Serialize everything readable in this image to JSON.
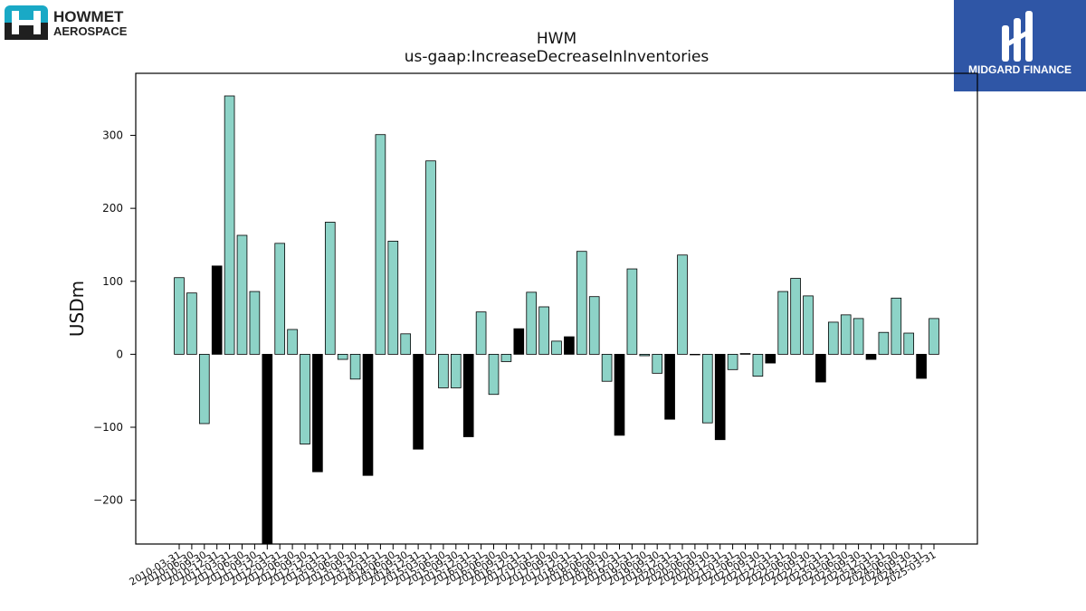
{
  "header": {
    "title": "HWM",
    "subtitle": "us-gaap:IncreaseDecreaseInInventories",
    "company_logo_text_1": "HOWMET",
    "company_logo_text_2": "AEROSPACE",
    "brand_logo_text": "MIDGARD FINANCE"
  },
  "colors": {
    "bar_regular": "#8dd3c7",
    "bar_annual": "#000000",
    "brand_blue": "#2f56a6",
    "howmet_teal": "#19a9c6"
  },
  "chart_data": {
    "type": "bar",
    "ylabel": "USDm",
    "xlabel": "",
    "ylim": [
      -260,
      385
    ],
    "yticks": [
      -200,
      -100,
      0,
      100,
      200,
      300
    ],
    "values": [
      105,
      84,
      -95,
      121,
      354,
      163,
      86,
      -262,
      152,
      34,
      -123,
      -161,
      181,
      -7,
      -34,
      -166,
      301,
      155,
      28,
      -130,
      265,
      -46,
      -46,
      -113,
      58,
      -55,
      -10,
      35,
      85,
      65,
      18,
      24,
      141,
      79,
      -37,
      -111,
      117,
      -2,
      -26,
      -89,
      136,
      0,
      -94,
      -117,
      -21,
      1,
      -30,
      -12,
      86,
      104,
      80,
      -38,
      44,
      54,
      49,
      -7,
      30,
      77,
      29,
      -33,
      49
    ],
    "annual_flags": [
      0,
      0,
      0,
      1,
      0,
      0,
      0,
      1,
      0,
      0,
      0,
      1,
      0,
      0,
      0,
      1,
      0,
      0,
      0,
      1,
      0,
      0,
      0,
      1,
      0,
      0,
      0,
      1,
      0,
      0,
      0,
      1,
      0,
      0,
      0,
      1,
      0,
      0,
      0,
      1,
      0,
      0,
      0,
      1,
      0,
      0,
      0,
      1,
      0,
      0,
      0,
      1,
      0,
      0,
      0,
      1,
      0,
      0,
      0,
      1,
      0
    ],
    "tick_labels": [
      "2010-03-31",
      "2010-06-30",
      "2010-09-30",
      "2010-12-31",
      "2011-03-31",
      "2011-06-30",
      "2011-09-30",
      "2011-12-31",
      "2012-03-31",
      "2012-06-30",
      "2012-09-30",
      "2012-12-31",
      "2013-03-31",
      "2013-06-30",
      "2013-09-30",
      "2013-12-31",
      "2014-03-31",
      "2014-06-30",
      "2014-09-30",
      "2014-12-31",
      "2015-03-31",
      "2015-06-30",
      "2015-09-30",
      "2015-12-31",
      "2016-03-31",
      "2016-06-30",
      "2016-09-30",
      "2016-12-31",
      "2017-03-31",
      "2017-06-30",
      "2017-09-30",
      "2017-12-31",
      "2018-03-31",
      "2018-06-30",
      "2018-09-30",
      "2018-12-31",
      "2019-03-31",
      "2019-06-30",
      "2019-09-30",
      "2019-12-31",
      "2020-03-31",
      "2020-06-30",
      "2020-09-30",
      "2020-12-31",
      "2021-03-31",
      "2021-06-30",
      "2021-09-30",
      "2021-12-31",
      "2022-03-31",
      "2022-06-30",
      "2022-09-30",
      "2022-12-31",
      "2023-03-31",
      "2023-06-30",
      "2023-09-30",
      "2023-12-31",
      "2024-03-31",
      "2024-06-30",
      "2024-09-30",
      "2024-12-31",
      "2025-03-31"
    ],
    "grid": false,
    "legend": "none"
  }
}
